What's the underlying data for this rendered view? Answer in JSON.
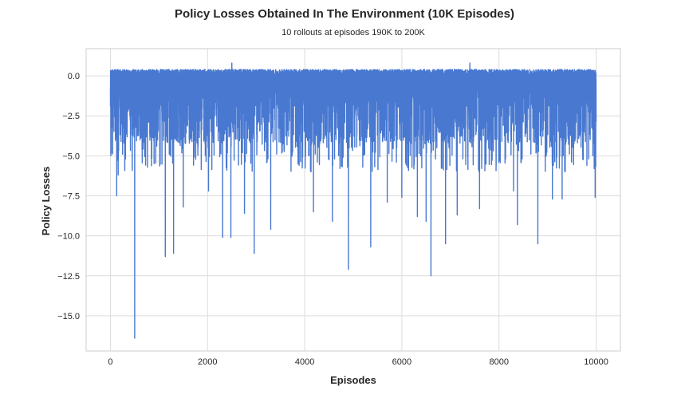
{
  "chart_data": {
    "type": "line",
    "title": "Policy Losses Obtained In The Environment (10K Episodes)",
    "subtitle": "10 rollouts at episodes 190K to 200K",
    "xlabel": "Episodes",
    "ylabel": "Policy Losses",
    "xlim": [
      -500,
      10500
    ],
    "ylim": [
      -17.2,
      1.7
    ],
    "xticks": [
      0,
      2000,
      4000,
      6000,
      8000,
      10000
    ],
    "xtick_labels": [
      "0",
      "2000",
      "4000",
      "6000",
      "8000",
      "10000"
    ],
    "yticks": [
      0.0,
      -2.5,
      -5.0,
      -7.5,
      -10.0,
      -12.5,
      -15.0
    ],
    "ytick_labels": [
      "0.0",
      "−2.5",
      "−5.0",
      "−7.5",
      "−10.0",
      "−12.5",
      "−15.0"
    ],
    "grid": true,
    "legend": "none",
    "line_color": "#4878d0",
    "x_range": [
      0,
      10000
    ],
    "n_points": 10000,
    "baseline_band": [
      -0.3,
      0.4
    ],
    "notable_points": [
      {
        "x": 10,
        "y": -5.0
      },
      {
        "x": 130,
        "y": -7.5
      },
      {
        "x": 160,
        "y": -6.2
      },
      {
        "x": 250,
        "y": -4.9
      },
      {
        "x": 500,
        "y": -16.4
      },
      {
        "x": 1130,
        "y": -11.3
      },
      {
        "x": 1300,
        "y": -11.1
      },
      {
        "x": 1500,
        "y": -8.2
      },
      {
        "x": 2020,
        "y": -7.2
      },
      {
        "x": 2310,
        "y": -10.1
      },
      {
        "x": 2480,
        "y": -10.1
      },
      {
        "x": 2760,
        "y": -8.6
      },
      {
        "x": 2960,
        "y": -11.1
      },
      {
        "x": 3300,
        "y": -9.6
      },
      {
        "x": 4180,
        "y": -8.5
      },
      {
        "x": 4570,
        "y": -9.1
      },
      {
        "x": 4900,
        "y": -12.1
      },
      {
        "x": 5360,
        "y": -10.7
      },
      {
        "x": 5700,
        "y": -7.9
      },
      {
        "x": 6000,
        "y": -7.6
      },
      {
        "x": 6320,
        "y": -8.8
      },
      {
        "x": 6500,
        "y": -9.1
      },
      {
        "x": 6600,
        "y": -12.5
      },
      {
        "x": 6900,
        "y": -10.5
      },
      {
        "x": 7140,
        "y": -8.7
      },
      {
        "x": 7400,
        "y": -8.7
      },
      {
        "x": 7600,
        "y": -8.3
      },
      {
        "x": 8300,
        "y": -7.2
      },
      {
        "x": 8380,
        "y": -9.3
      },
      {
        "x": 8800,
        "y": -10.5
      },
      {
        "x": 9100,
        "y": -7.7
      },
      {
        "x": 9300,
        "y": -7.7
      },
      {
        "x": 9980,
        "y": -7.6
      },
      {
        "x": 2500,
        "y": 0.8
      },
      {
        "x": 7400,
        "y": 0.8
      }
    ]
  }
}
